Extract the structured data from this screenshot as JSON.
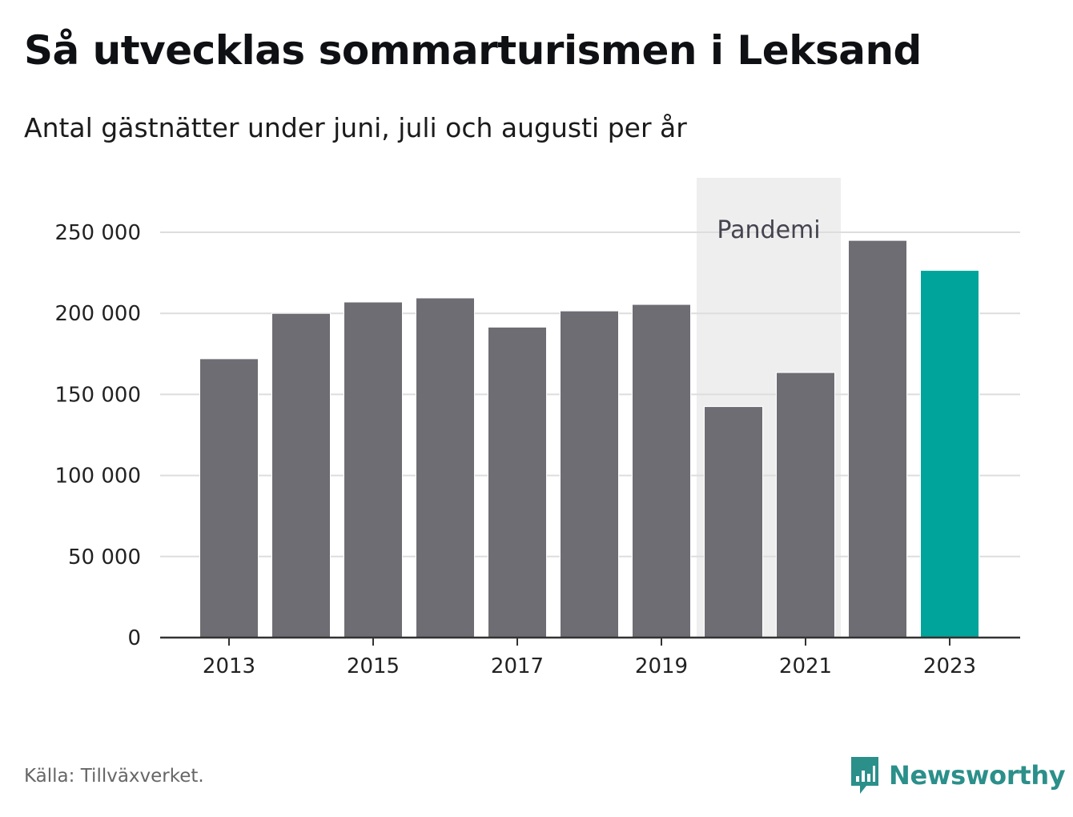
{
  "title": "Så utvecklas sommarturismen i Leksand",
  "subtitle": "Antal gästnätter under juni, juli och augusti per år",
  "source": "Källa: Tillväxverket.",
  "brand": {
    "name": "Newsworthy",
    "icon": "newsworthy-logo-icon",
    "color": "#2b8f8a"
  },
  "chart_data": {
    "type": "bar",
    "categories": [
      "2013",
      "2014",
      "2015",
      "2016",
      "2017",
      "2018",
      "2019",
      "2020",
      "2021",
      "2022",
      "2023"
    ],
    "values": [
      172000,
      200000,
      207000,
      209500,
      191500,
      201500,
      205500,
      142500,
      163500,
      245000,
      226500
    ],
    "highlight_index": 10,
    "colors": {
      "bar": "#6e6d73",
      "highlight": "#00a49a",
      "band": "#eeeeee",
      "grid": "#dddddd",
      "axis": "#333333"
    },
    "ylim": [
      0,
      275000
    ],
    "yticks": [
      {
        "value": 0,
        "label": "0"
      },
      {
        "value": 50000,
        "label": "50 000"
      },
      {
        "value": 100000,
        "label": "100 000"
      },
      {
        "value": 150000,
        "label": "150 000"
      },
      {
        "value": 200000,
        "label": "200 000"
      },
      {
        "value": 250000,
        "label": "250 000"
      }
    ],
    "xticks": [
      "2013",
      "2015",
      "2017",
      "2019",
      "2021",
      "2023"
    ],
    "annotation": {
      "label": "Pandemi",
      "from": "2020",
      "to": "2021"
    },
    "grid": true,
    "legend": "none"
  }
}
